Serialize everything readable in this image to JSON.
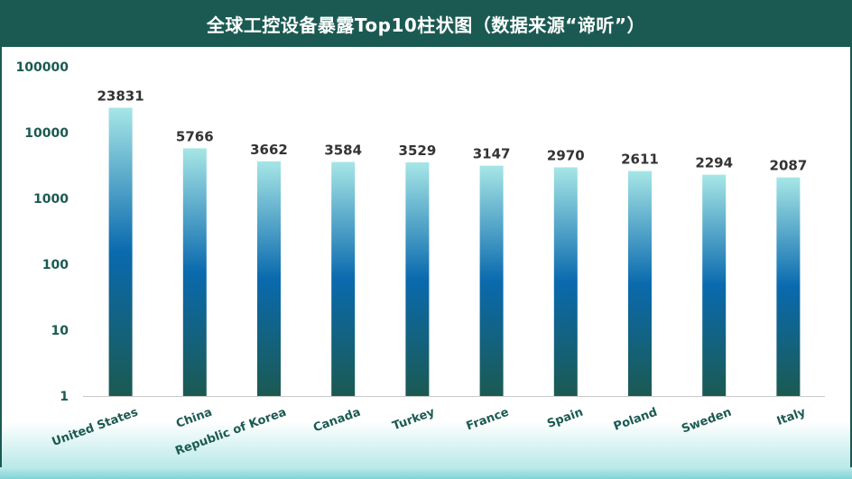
{
  "chart_title": "全球工控设备暴露Top10柱状图（数据来源“谛听”）",
  "chart_data": {
    "type": "bar",
    "title": "全球工控设备暴露Top10柱状图（数据来源“谛听”）",
    "xlabel": "",
    "ylabel": "",
    "yscale": "log",
    "ylim": [
      1,
      100000
    ],
    "yticks": [
      "1",
      "10",
      "100",
      "1000",
      "10000",
      "100000"
    ],
    "grid": false,
    "legend": "none",
    "categories": [
      "United States",
      "China",
      "Republic of Korea",
      "Canada",
      "Turkey",
      "France",
      "Spain",
      "Poland",
      "Sweden",
      "Italy"
    ],
    "values": [
      23831,
      5766,
      3662,
      3584,
      3529,
      3147,
      2970,
      2611,
      2294,
      2087
    ],
    "data_labels": [
      "23831",
      "5766",
      "3662",
      "3584",
      "3529",
      "3147",
      "2970",
      "2611",
      "2294",
      "2087"
    ]
  },
  "colors": {
    "header": "#1b5a52",
    "bar_top": "#a6e6e6",
    "bar_mid": "#0a6aae",
    "bar_bottom": "#1b5a52",
    "label_text": "#1b5a52",
    "value_text": "#333333",
    "axis": "#c8c8c8"
  }
}
